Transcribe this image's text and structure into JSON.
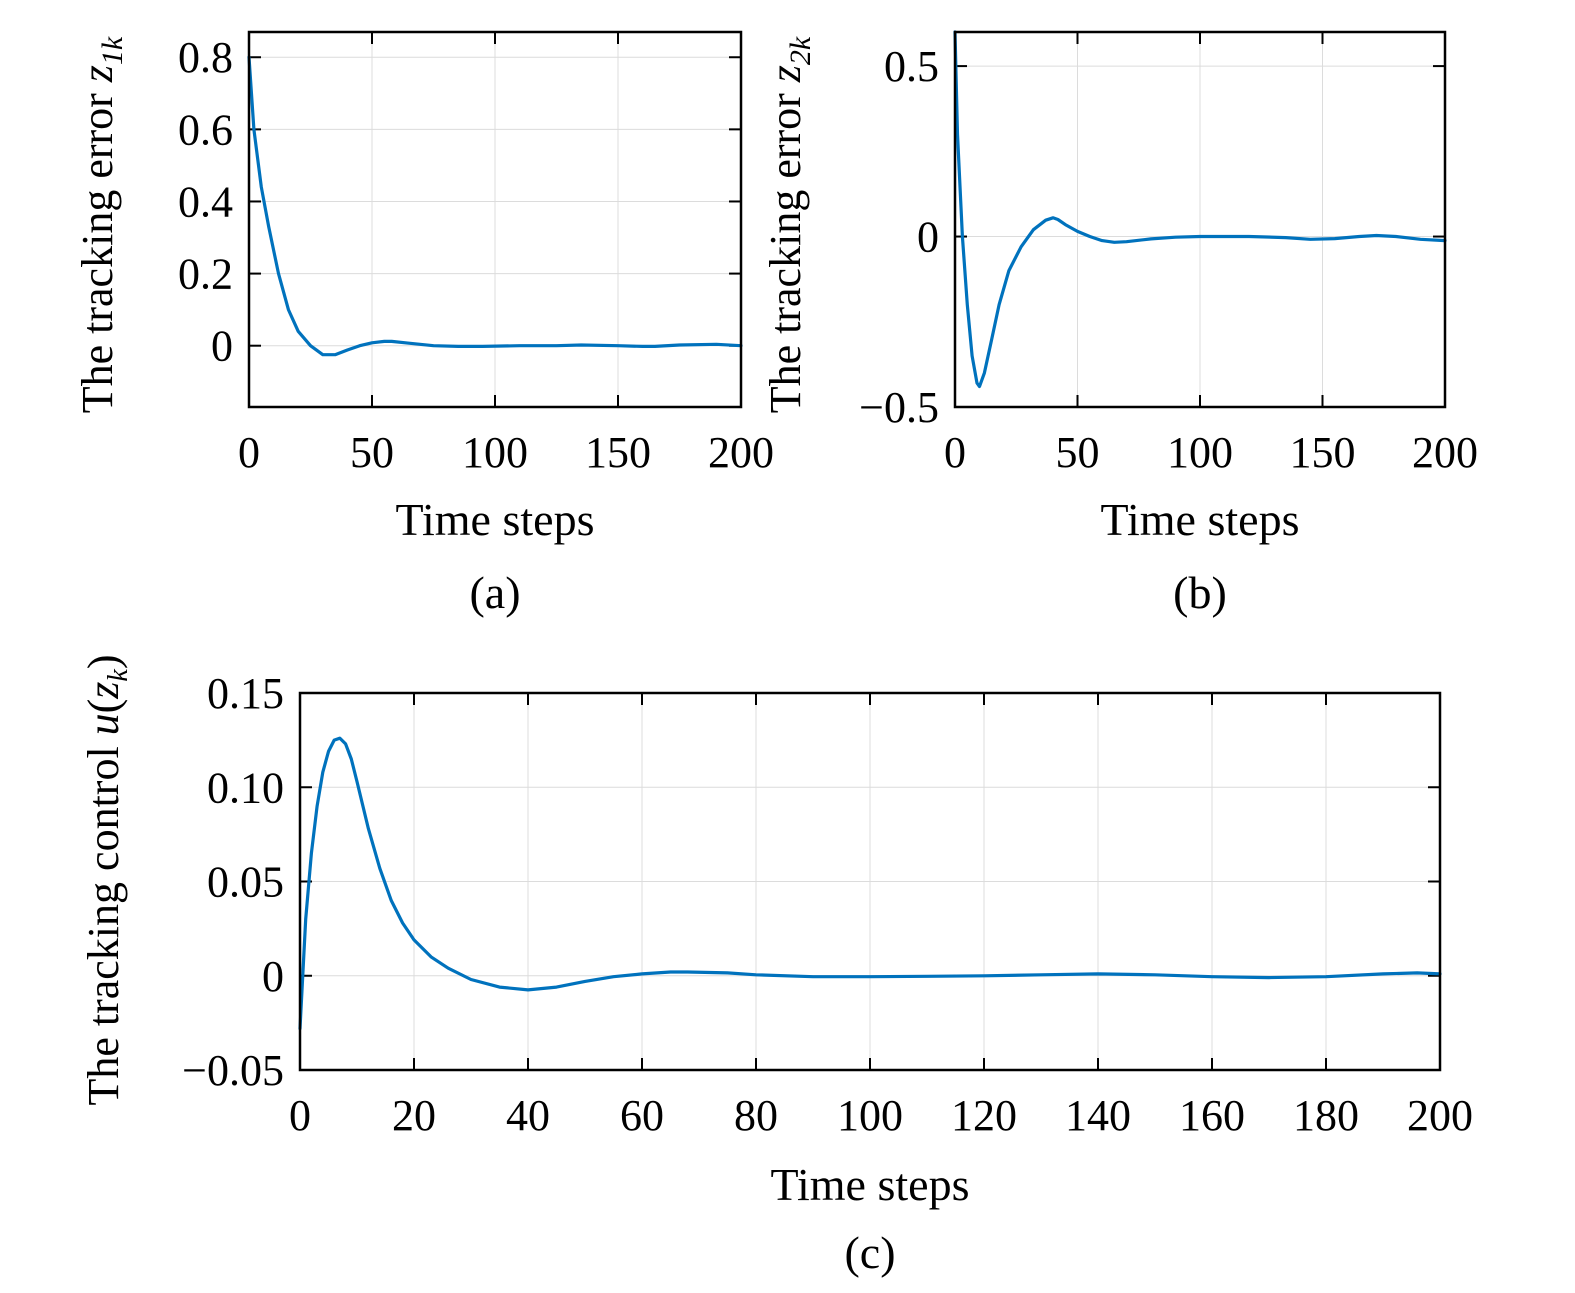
{
  "chart_data": [
    {
      "id": "a",
      "type": "line",
      "caption": "(a)",
      "xlabel": "Time steps",
      "ylabel": "The tracking error ",
      "ylabel_sym": "z",
      "ylabel_sub": "1k",
      "xlim": [
        0,
        200
      ],
      "ylim": [
        -0.17,
        0.87
      ],
      "xticks": [
        0,
        50,
        100,
        150,
        200
      ],
      "xtick_labels": [
        "0",
        "50",
        "100",
        "150",
        "200"
      ],
      "yticks": [
        0,
        0.2,
        0.4,
        0.6,
        0.8
      ],
      "ytick_labels": [
        "0",
        "0.2",
        "0.4",
        "0.6",
        "0.8"
      ],
      "grid": true,
      "color": "#0072BD",
      "x": [
        0,
        2,
        5,
        8,
        12,
        16,
        20,
        25,
        30,
        35,
        40,
        45,
        50,
        55,
        58,
        65,
        75,
        85,
        95,
        110,
        125,
        135,
        150,
        160,
        165,
        175,
        190,
        200
      ],
      "y": [
        0.8,
        0.6,
        0.44,
        0.33,
        0.2,
        0.1,
        0.04,
        0.0,
        -0.025,
        -0.025,
        -0.012,
        0.0,
        0.008,
        0.012,
        0.012,
        0.007,
        0.0,
        -0.002,
        -0.002,
        0.0,
        0.0,
        0.002,
        0.0,
        -0.002,
        -0.002,
        0.002,
        0.004,
        0.0
      ]
    },
    {
      "id": "b",
      "type": "line",
      "caption": "(b)",
      "xlabel": "Time steps",
      "ylabel": "The tracking error ",
      "ylabel_sym": "z",
      "ylabel_sub": "2k",
      "xlim": [
        0,
        200
      ],
      "ylim": [
        -0.5,
        0.6
      ],
      "xticks": [
        0,
        50,
        100,
        150,
        200
      ],
      "xtick_labels": [
        "0",
        "50",
        "100",
        "150",
        "200"
      ],
      "yticks": [
        -0.5,
        0,
        0.5
      ],
      "ytick_labels": [
        "−0.5",
        "0",
        "0.5"
      ],
      "grid": true,
      "color": "#0072BD",
      "x": [
        0,
        1,
        3,
        5,
        7,
        9,
        10,
        12,
        15,
        18,
        22,
        27,
        32,
        37,
        40,
        42,
        45,
        50,
        55,
        60,
        65,
        70,
        80,
        90,
        100,
        120,
        135,
        145,
        155,
        165,
        172,
        180,
        190,
        200
      ],
      "y": [
        0.6,
        0.3,
        0.0,
        -0.2,
        -0.35,
        -0.43,
        -0.44,
        -0.4,
        -0.3,
        -0.2,
        -0.1,
        -0.03,
        0.02,
        0.048,
        0.055,
        0.05,
        0.035,
        0.015,
        0.0,
        -0.012,
        -0.017,
        -0.015,
        -0.007,
        -0.002,
        0.0,
        0.0,
        -0.003,
        -0.008,
        -0.006,
        0.0,
        0.003,
        0.0,
        -0.008,
        -0.012
      ]
    },
    {
      "id": "c",
      "type": "line",
      "caption": "(c)",
      "xlabel": "Time steps",
      "ylabel": "The tracking control ",
      "ylabel_sym": "u",
      "ylabel_inner_sym": "z",
      "ylabel_inner_sub": "k",
      "xlim": [
        0,
        200
      ],
      "ylim": [
        -0.05,
        0.15
      ],
      "xticks": [
        0,
        20,
        40,
        60,
        80,
        100,
        120,
        140,
        160,
        180,
        200
      ],
      "xtick_labels": [
        "0",
        "20",
        "40",
        "60",
        "80",
        "100",
        "120",
        "140",
        "160",
        "180",
        "200"
      ],
      "yticks": [
        -0.05,
        0,
        0.05,
        0.1,
        0.15
      ],
      "ytick_labels": [
        "−0.05",
        "0",
        "0.05",
        "0.10",
        "0.15"
      ],
      "grid": true,
      "color": "#0072BD",
      "x": [
        0,
        1,
        2,
        3,
        4,
        5,
        6,
        7,
        8,
        9,
        10,
        12,
        14,
        16,
        18,
        20,
        23,
        26,
        30,
        35,
        40,
        45,
        50,
        55,
        60,
        65,
        68,
        75,
        80,
        90,
        100,
        110,
        120,
        130,
        140,
        150,
        160,
        170,
        180,
        190,
        196,
        200
      ],
      "y": [
        -0.028,
        0.03,
        0.065,
        0.09,
        0.108,
        0.119,
        0.125,
        0.126,
        0.123,
        0.115,
        0.103,
        0.078,
        0.057,
        0.04,
        0.028,
        0.019,
        0.01,
        0.004,
        -0.002,
        -0.006,
        -0.0075,
        -0.006,
        -0.003,
        -0.0005,
        0.001,
        0.002,
        0.002,
        0.0015,
        0.0005,
        -0.0005,
        -0.0005,
        -0.0003,
        0.0,
        0.0005,
        0.001,
        0.0005,
        -0.0005,
        -0.001,
        -0.0005,
        0.001,
        0.0015,
        0.001
      ]
    }
  ]
}
